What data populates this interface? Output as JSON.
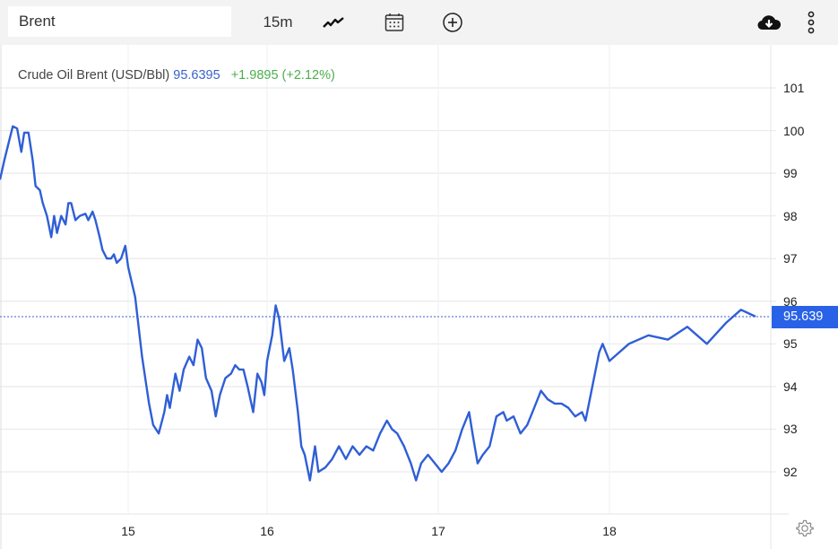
{
  "toolbar": {
    "search_value": "Brent",
    "interval": "15m",
    "icons": [
      "line-chart-icon",
      "calendar-icon",
      "add-circle-icon",
      "download-cloud-icon",
      "more-vertical-icon"
    ]
  },
  "legend": {
    "instrument": "Crude Oil Brent (USD/Bbl)",
    "price": "95.6395",
    "change": "+1.9895 (+2.12%)"
  },
  "price_tag": "95.639",
  "colors": {
    "line": "#2f5fd6",
    "price_tag_bg": "#2962e6",
    "change_positive": "#4cae4c",
    "price_text": "#3a62c8"
  },
  "chart_data": {
    "type": "line",
    "title": "Crude Oil Brent (USD/Bbl)",
    "xlabel": "",
    "ylabel": "",
    "interval": "15m",
    "x_tick_labels": [
      "15",
      "16",
      "17",
      "18"
    ],
    "y_tick_labels": [
      "101",
      "100",
      "99",
      "98",
      "97",
      "96",
      "95",
      "94",
      "93",
      "92"
    ],
    "ylim": [
      91.0,
      102.0
    ],
    "grid": true,
    "last_price": 95.639,
    "series": [
      {
        "name": "Crude Oil Brent",
        "points": [
          [
            0.0,
            98.85
          ],
          [
            0.03,
            99.3
          ],
          [
            0.06,
            99.7
          ],
          [
            0.09,
            100.1
          ],
          [
            0.12,
            100.05
          ],
          [
            0.15,
            99.5
          ],
          [
            0.17,
            99.95
          ],
          [
            0.2,
            99.95
          ],
          [
            0.23,
            99.3
          ],
          [
            0.25,
            98.7
          ],
          [
            0.28,
            98.6
          ],
          [
            0.3,
            98.3
          ],
          [
            0.33,
            98.0
          ],
          [
            0.36,
            97.5
          ],
          [
            0.38,
            98.0
          ],
          [
            0.4,
            97.6
          ],
          [
            0.43,
            98.0
          ],
          [
            0.46,
            97.8
          ],
          [
            0.48,
            98.3
          ],
          [
            0.5,
            98.3
          ],
          [
            0.53,
            97.9
          ],
          [
            0.56,
            98.0
          ],
          [
            0.6,
            98.05
          ],
          [
            0.62,
            97.9
          ],
          [
            0.65,
            98.1
          ],
          [
            0.67,
            97.9
          ],
          [
            0.7,
            97.5
          ],
          [
            0.72,
            97.2
          ],
          [
            0.75,
            97.0
          ],
          [
            0.78,
            97.0
          ],
          [
            0.8,
            97.1
          ],
          [
            0.82,
            96.9
          ],
          [
            0.85,
            97.0
          ],
          [
            0.87,
            97.2
          ],
          [
            0.88,
            97.3
          ],
          [
            0.9,
            96.8
          ],
          [
            0.95,
            96.1
          ],
          [
            1.0,
            94.7
          ],
          [
            1.05,
            93.6
          ],
          [
            1.08,
            93.1
          ],
          [
            1.12,
            92.9
          ],
          [
            1.16,
            93.4
          ],
          [
            1.18,
            93.8
          ],
          [
            1.2,
            93.5
          ],
          [
            1.24,
            94.3
          ],
          [
            1.27,
            93.9
          ],
          [
            1.3,
            94.4
          ],
          [
            1.34,
            94.7
          ],
          [
            1.37,
            94.5
          ],
          [
            1.4,
            95.1
          ],
          [
            1.43,
            94.9
          ],
          [
            1.46,
            94.2
          ],
          [
            1.5,
            93.9
          ],
          [
            1.53,
            93.3
          ],
          [
            1.56,
            93.8
          ],
          [
            1.6,
            94.2
          ],
          [
            1.64,
            94.3
          ],
          [
            1.67,
            94.5
          ],
          [
            1.7,
            94.4
          ],
          [
            1.73,
            94.4
          ],
          [
            1.76,
            94.0
          ],
          [
            1.8,
            93.4
          ],
          [
            1.83,
            94.3
          ],
          [
            1.86,
            94.1
          ],
          [
            1.88,
            93.8
          ],
          [
            1.9,
            94.6
          ],
          [
            1.93,
            95.2
          ],
          [
            1.95,
            95.9
          ],
          [
            1.97,
            95.6
          ],
          [
            2.0,
            94.6
          ],
          [
            2.03,
            94.9
          ],
          [
            2.05,
            94.4
          ],
          [
            2.08,
            93.4
          ],
          [
            2.1,
            92.6
          ],
          [
            2.12,
            92.4
          ],
          [
            2.15,
            91.8
          ],
          [
            2.18,
            92.6
          ],
          [
            2.2,
            92.0
          ],
          [
            2.24,
            92.1
          ],
          [
            2.28,
            92.3
          ],
          [
            2.32,
            92.6
          ],
          [
            2.36,
            92.3
          ],
          [
            2.4,
            92.6
          ],
          [
            2.44,
            92.4
          ],
          [
            2.48,
            92.6
          ],
          [
            2.52,
            92.5
          ],
          [
            2.56,
            92.9
          ],
          [
            2.6,
            93.2
          ],
          [
            2.63,
            93.0
          ],
          [
            2.66,
            92.9
          ],
          [
            2.7,
            92.6
          ],
          [
            2.74,
            92.2
          ],
          [
            2.77,
            91.8
          ],
          [
            2.8,
            92.2
          ],
          [
            2.84,
            92.4
          ],
          [
            2.88,
            92.2
          ],
          [
            2.92,
            92.0
          ],
          [
            2.96,
            92.2
          ],
          [
            3.0,
            92.5
          ],
          [
            3.04,
            93.0
          ],
          [
            3.08,
            93.4
          ],
          [
            3.1,
            92.9
          ],
          [
            3.13,
            92.2
          ],
          [
            3.16,
            92.4
          ],
          [
            3.2,
            92.6
          ],
          [
            3.24,
            93.3
          ],
          [
            3.28,
            93.4
          ],
          [
            3.3,
            93.2
          ],
          [
            3.34,
            93.3
          ],
          [
            3.38,
            92.9
          ],
          [
            3.42,
            93.1
          ],
          [
            3.46,
            93.5
          ],
          [
            3.5,
            93.9
          ],
          [
            3.54,
            93.7
          ],
          [
            3.58,
            93.6
          ],
          [
            3.62,
            93.6
          ],
          [
            3.66,
            93.5
          ],
          [
            3.7,
            93.3
          ],
          [
            3.74,
            93.4
          ],
          [
            3.76,
            93.2
          ],
          [
            3.8,
            94.0
          ],
          [
            3.84,
            94.8
          ],
          [
            3.86,
            95.0
          ],
          [
            3.9,
            94.6
          ],
          [
            3.94,
            95.0
          ],
          [
            3.98,
            95.2
          ],
          [
            4.02,
            95.1
          ],
          [
            4.06,
            95.4
          ],
          [
            4.1,
            95.0
          ],
          [
            4.14,
            95.5
          ],
          [
            4.17,
            95.8
          ],
          [
            4.2,
            95.64
          ]
        ]
      }
    ]
  }
}
